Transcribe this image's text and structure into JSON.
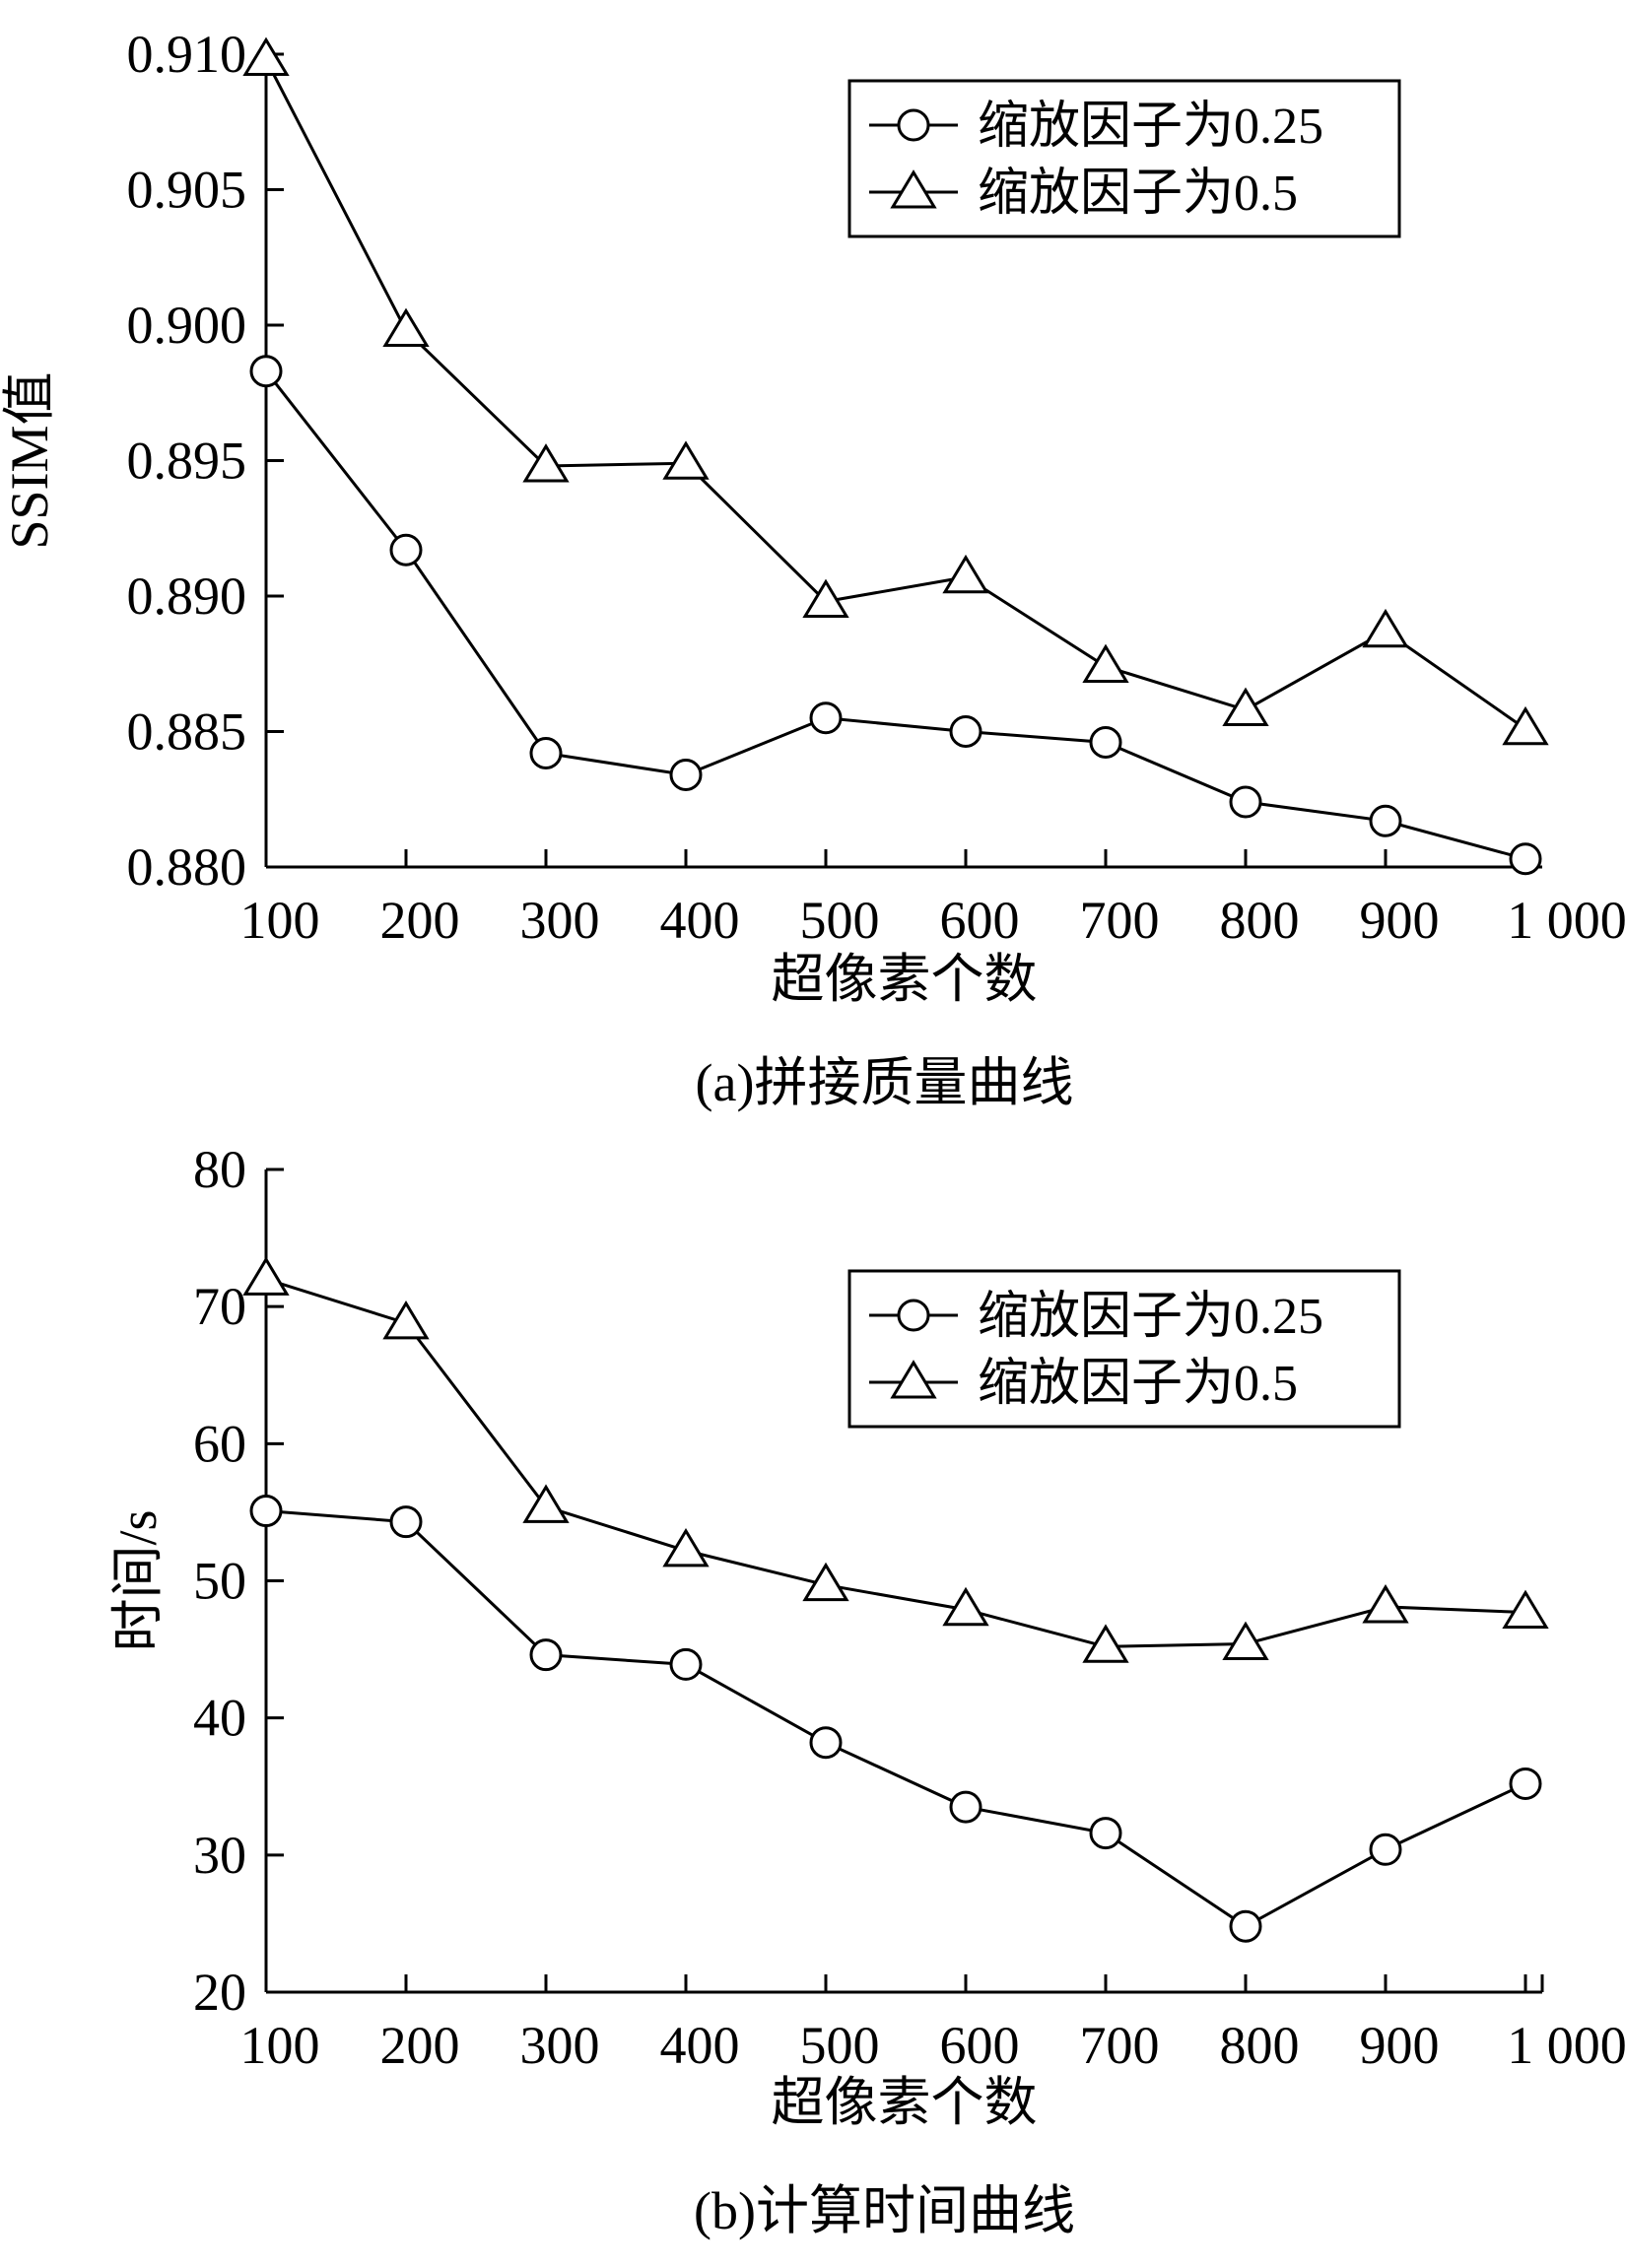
{
  "chart_data": [
    {
      "type": "line",
      "caption": "(a)拼接质量曲线",
      "xlabel": "超像素个数",
      "ylabel": "SSIM值",
      "x": [
        100,
        200,
        300,
        400,
        500,
        600,
        700,
        800,
        900,
        1000
      ],
      "x_tick_labels": [
        "100",
        "200",
        "300",
        "400",
        "500",
        "600",
        "700",
        "800",
        "900",
        "1 000"
      ],
      "ylim": [
        0.88,
        0.91
      ],
      "y_ticks": [
        0.88,
        0.885,
        0.89,
        0.895,
        0.9,
        0.905,
        0.91
      ],
      "y_tick_labels": [
        "0.880",
        "0.885",
        "0.890",
        "0.895",
        "0.900",
        "0.905",
        "0.910"
      ],
      "legend_position": "top-right",
      "series": [
        {
          "name": "缩放因子为0.25",
          "marker": "circle",
          "values": [
            0.8983,
            0.8917,
            0.8842,
            0.8834,
            0.8855,
            0.885,
            0.8846,
            0.8824,
            0.8817,
            0.8803
          ]
        },
        {
          "name": "缩放因子为0.5",
          "marker": "triangle",
          "values": [
            0.9098,
            0.8998,
            0.8948,
            0.8949,
            0.8898,
            0.8907,
            0.8874,
            0.8858,
            0.8887,
            0.8851
          ]
        }
      ]
    },
    {
      "type": "line",
      "caption": "(b)计算时间曲线",
      "xlabel": "超像素个数",
      "ylabel": "时间/s",
      "x": [
        100,
        200,
        300,
        400,
        500,
        600,
        700,
        800,
        900,
        1000
      ],
      "x_tick_labels": [
        "100",
        "200",
        "300",
        "400",
        "500",
        "600",
        "700",
        "800",
        "900",
        "1 000"
      ],
      "ylim": [
        20,
        80
      ],
      "y_ticks": [
        20,
        30,
        40,
        50,
        60,
        70,
        80
      ],
      "y_tick_labels": [
        "20",
        "30",
        "40",
        "50",
        "60",
        "70",
        "80"
      ],
      "legend_position": "top-right",
      "series": [
        {
          "name": "缩放因子为0.25",
          "marker": "circle",
          "values": [
            55.1,
            54.3,
            44.6,
            43.9,
            38.2,
            33.5,
            31.6,
            24.8,
            30.4,
            35.2
          ]
        },
        {
          "name": "缩放因子为0.5",
          "marker": "triangle",
          "values": [
            72.0,
            68.8,
            55.4,
            52.2,
            49.7,
            47.9,
            45.2,
            45.4,
            48.1,
            47.7
          ]
        }
      ]
    }
  ]
}
